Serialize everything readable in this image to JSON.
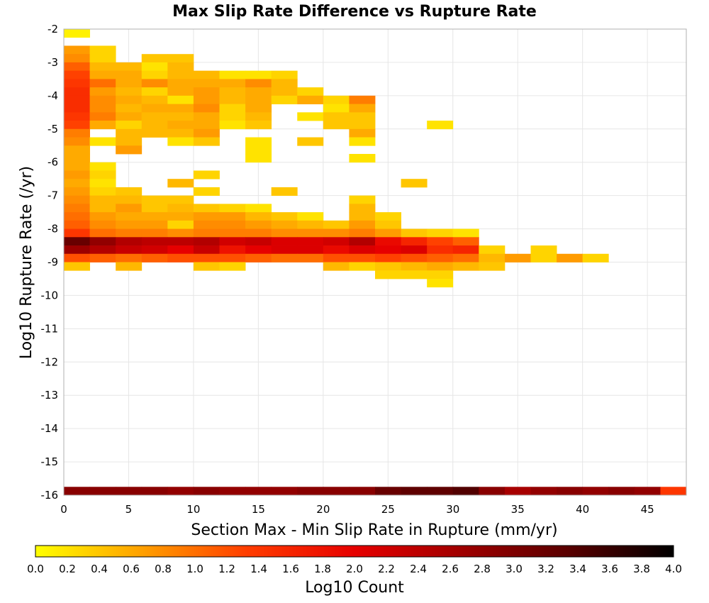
{
  "chart_data": {
    "type": "heatmap",
    "title": "Max Slip Rate Difference vs Rupture Rate",
    "xlabel": "Section Max - Min Slip Rate in Rupture (mm/yr)",
    "ylabel": "Log10 Rupture Rate (/yr)",
    "xlim": [
      0,
      48
    ],
    "ylim": [
      -16,
      -2
    ],
    "bin_size": {
      "x": 2,
      "y": 0.25
    },
    "x_ticks": [
      "0",
      "5",
      "10",
      "15",
      "20",
      "25",
      "30",
      "35",
      "40",
      "45"
    ],
    "y_ticks": [
      "-2",
      "-3",
      "-4",
      "-5",
      "-6",
      "-7",
      "-8",
      "-9",
      "-10",
      "-11",
      "-12",
      "-13",
      "-14",
      "-15",
      "-16"
    ],
    "grid": true,
    "colorbar": {
      "label": "Log10 Count",
      "range": [
        0,
        4
      ],
      "ticks": [
        "0.0",
        "0.2",
        "0.4",
        "0.6",
        "0.8",
        "1.0",
        "1.2",
        "1.4",
        "1.6",
        "1.8",
        "2.0",
        "2.2",
        "2.4",
        "2.6",
        "2.8",
        "3.0",
        "3.2",
        "3.4",
        "3.6",
        "3.8",
        "4.0"
      ],
      "colors": [
        "#ffff00",
        "#ffa000",
        "#ff3c00",
        "#e60000",
        "#a00000",
        "#5a0000",
        "#000000"
      ]
    },
    "rows": [
      {
        "y": -2.125,
        "values": [
          0.1
        ]
      },
      {
        "y": -2.625,
        "values": [
          0.7,
          0.3
        ]
      },
      {
        "y": -2.875,
        "values": [
          0.8,
          0.3,
          0,
          0.4,
          0.4
        ]
      },
      {
        "y": -3.125,
        "values": [
          1.1,
          0.5,
          0.5,
          0.2,
          0.5
        ]
      },
      {
        "y": -3.375,
        "values": [
          1.3,
          0.6,
          0.6,
          0.3,
          0.5,
          0.5,
          0.2,
          0.2,
          0.3
        ]
      },
      {
        "y": -3.625,
        "values": [
          1.4,
          1.0,
          0.6,
          0.8,
          0.6,
          0.6,
          0.6,
          0.8,
          0.5
        ]
      },
      {
        "y": -3.875,
        "values": [
          1.5,
          0.7,
          0.5,
          0.3,
          0.6,
          0.7,
          0.5,
          0.6,
          0.5,
          0.3
        ]
      },
      {
        "y": -4.125,
        "values": [
          1.5,
          0.8,
          0.6,
          0.5,
          0.2,
          0.7,
          0.5,
          0.6,
          0.3,
          0.6,
          0.3,
          0.9
        ]
      },
      {
        "y": -4.375,
        "values": [
          1.5,
          0.8,
          0.5,
          0.6,
          0.6,
          0.8,
          0.3,
          0.6,
          0,
          0,
          0.2,
          0.6
        ]
      },
      {
        "y": -4.625,
        "values": [
          1.4,
          0.9,
          0.6,
          0.5,
          0.5,
          0.6,
          0.3,
          0.5,
          0,
          0.2,
          0.4,
          0.4
        ]
      },
      {
        "y": -4.875,
        "values": [
          1.3,
          0.6,
          0.3,
          0.5,
          0.6,
          0.6,
          0.2,
          0.4,
          0,
          0,
          0.4,
          0.4,
          0,
          0,
          0.2
        ]
      },
      {
        "y": -5.125,
        "values": [
          0.9,
          0,
          0.5,
          0.5,
          0.5,
          0.7,
          0,
          0,
          0,
          0,
          0,
          0.6
        ]
      },
      {
        "y": -5.375,
        "values": [
          0.8,
          0.2,
          0.5,
          0,
          0.2,
          0.4,
          0,
          0.2,
          0,
          0.4,
          0,
          0.2
        ]
      },
      {
        "y": -5.625,
        "values": [
          0.6,
          0,
          0.7,
          0,
          0,
          0,
          0,
          0.2
        ]
      },
      {
        "y": -5.875,
        "values": [
          0.6,
          0,
          0,
          0,
          0,
          0,
          0,
          0.2,
          0,
          0,
          0,
          0.2
        ]
      },
      {
        "y": -6.125,
        "values": [
          0.6,
          0.2
        ]
      },
      {
        "y": -6.375,
        "values": [
          0.7,
          0.3,
          0,
          0,
          0,
          0.3
        ]
      },
      {
        "y": -6.625,
        "values": [
          0.6,
          0.2,
          0,
          0,
          0.5,
          0,
          0,
          0,
          0,
          0,
          0,
          0,
          0,
          0.4
        ]
      },
      {
        "y": -6.875,
        "values": [
          0.7,
          0.3,
          0.4,
          0,
          0,
          0.3,
          0,
          0,
          0.4
        ]
      },
      {
        "y": -7.125,
        "values": [
          0.8,
          0.5,
          0.5,
          0.4,
          0.4,
          0,
          0,
          0,
          0,
          0,
          0,
          0.3
        ]
      },
      {
        "y": -7.375,
        "values": [
          0.9,
          0.5,
          0.7,
          0.4,
          0.5,
          0.4,
          0.3,
          0.2,
          0,
          0,
          0,
          0.5
        ]
      },
      {
        "y": -7.625,
        "values": [
          1.0,
          0.7,
          0.6,
          0.6,
          0.6,
          0.7,
          0.7,
          0.5,
          0.4,
          0.2,
          0,
          0.5,
          0.3
        ]
      },
      {
        "y": -7.875,
        "values": [
          1.1,
          0.8,
          0.7,
          0.7,
          0.3,
          0.8,
          0.8,
          0.7,
          0.6,
          0.5,
          0.4,
          0.7,
          0.4
        ]
      },
      {
        "y": -8.125,
        "values": [
          1.4,
          1.0,
          0.9,
          0.9,
          0.8,
          0.9,
          0.9,
          0.9,
          0.8,
          0.8,
          0.8,
          0.9,
          0.7,
          0.4,
          0.3,
          0.2
        ]
      },
      {
        "y": -8.375,
        "values": [
          3.2,
          2.8,
          2.5,
          2.4,
          2.4,
          2.5,
          2.2,
          2.3,
          2.1,
          2.1,
          2.2,
          2.5,
          1.9,
          1.6,
          1.3,
          1.1
        ]
      },
      {
        "y": -8.625,
        "values": [
          2.7,
          2.5,
          2.3,
          2.2,
          2.0,
          2.3,
          1.8,
          2.0,
          2.1,
          2.1,
          1.9,
          2.1,
          2.0,
          2.1,
          1.5,
          1.6,
          0.3,
          0,
          0.3
        ]
      },
      {
        "y": -8.875,
        "values": [
          1.2,
          1.1,
          1.0,
          1.1,
          1.2,
          1.2,
          1.2,
          1.1,
          1.0,
          1.0,
          1.2,
          1.2,
          1.3,
          1.2,
          1.1,
          1.0,
          0.5,
          0.7,
          0.3,
          0.7,
          0.3
        ]
      },
      {
        "y": -9.125,
        "values": [
          0.4,
          0,
          0.5,
          0,
          0,
          0.4,
          0.3,
          0,
          0,
          0,
          0.5,
          0.3,
          0.4,
          0.5,
          0.6,
          0.5,
          0.4
        ]
      },
      {
        "y": -9.375,
        "values": [
          0,
          0,
          0,
          0,
          0,
          0,
          0,
          0,
          0,
          0,
          0,
          0,
          0.3,
          0.3,
          0.3
        ]
      },
      {
        "y": -9.625,
        "values": [
          0,
          0,
          0,
          0,
          0,
          0,
          0,
          0,
          0,
          0,
          0,
          0,
          0,
          0,
          0.2
        ]
      },
      {
        "y": -15.875,
        "values": [
          2.9,
          2.9,
          2.9,
          2.9,
          2.8,
          2.9,
          2.8,
          2.8,
          2.8,
          2.9,
          2.9,
          2.9,
          3.2,
          3.3,
          3.3,
          3.4,
          2.9,
          2.6,
          2.8,
          2.9,
          2.8,
          2.9,
          2.8,
          1.4
        ]
      }
    ]
  }
}
